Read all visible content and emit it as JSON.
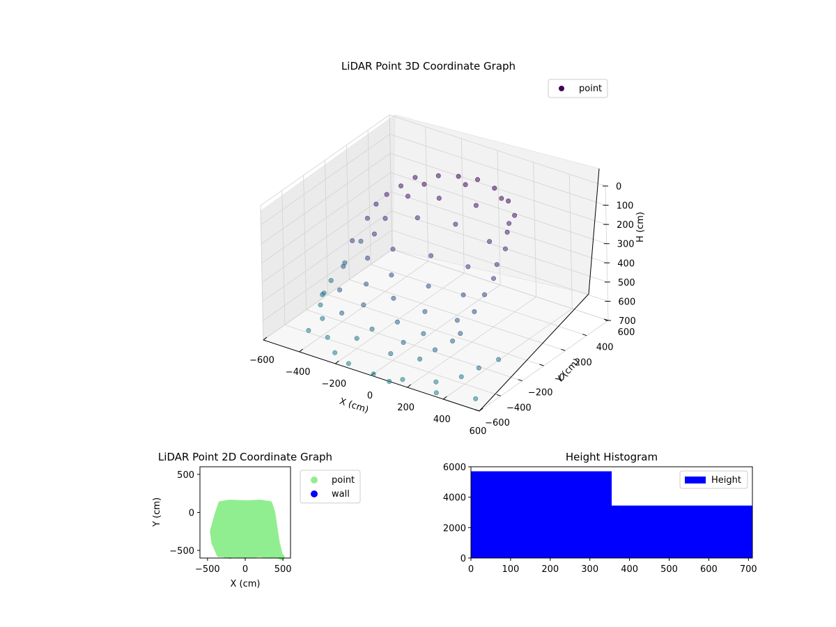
{
  "chart_data": [
    {
      "type": "scatter",
      "dimension": "3d",
      "title": "LiDAR Point 3D Coordinate Graph",
      "xlabel": "X (cm)",
      "ylabel": "Y (cm)",
      "zlabel": "H (cm)",
      "xlim": [
        -600,
        600
      ],
      "ylim": [
        -600,
        600
      ],
      "zlim": [
        0,
        700
      ],
      "z_inverted": true,
      "x_ticks": [
        -600,
        -400,
        -200,
        0,
        200,
        400,
        600
      ],
      "y_ticks": [
        -600,
        -400,
        -200,
        0,
        200,
        400,
        600
      ],
      "z_ticks": [
        0,
        100,
        200,
        300,
        400,
        500,
        600,
        700
      ],
      "x_tick_labels": [
        "−600",
        "−400",
        "−200",
        "0",
        "200",
        "400",
        "600"
      ],
      "y_tick_labels": [
        "−600",
        "−400",
        "−200",
        "0",
        "200",
        "400",
        "600"
      ],
      "z_tick_labels": [
        "0",
        "100",
        "200",
        "300",
        "400",
        "500",
        "600",
        "700"
      ],
      "grid": true,
      "legend": {
        "position": "top-right",
        "entries": [
          {
            "label": "point",
            "color": "#440154"
          }
        ]
      },
      "colormap": "viridis",
      "series": [
        {
          "name": "point",
          "points": [
            [
              -250,
              250,
              80
            ],
            [
              -150,
              300,
              60
            ],
            [
              -50,
              320,
              40
            ],
            [
              50,
              330,
              30
            ],
            [
              150,
              320,
              40
            ],
            [
              250,
              280,
              60
            ],
            [
              320,
              220,
              90
            ],
            [
              -300,
              200,
              120
            ],
            [
              -200,
              250,
              100
            ],
            [
              0,
              300,
              60
            ],
            [
              200,
              300,
              70
            ],
            [
              320,
              150,
              150
            ],
            [
              350,
              80,
              200
            ],
            [
              -350,
              150,
              160
            ],
            [
              -250,
              180,
              150
            ],
            [
              -100,
              220,
              130
            ],
            [
              100,
              230,
              110
            ],
            [
              300,
              200,
              130
            ],
            [
              350,
              0,
              250
            ],
            [
              -380,
              100,
              200
            ],
            [
              -300,
              50,
              230
            ],
            [
              -150,
              100,
              200
            ],
            [
              50,
              120,
              180
            ],
            [
              250,
              100,
              200
            ],
            [
              360,
              -50,
              300
            ],
            [
              -400,
              50,
              260
            ],
            [
              -320,
              -20,
              290
            ],
            [
              -200,
              -50,
              320
            ],
            [
              0,
              -30,
              300
            ],
            [
              200,
              -20,
              300
            ],
            [
              350,
              -120,
              360
            ],
            [
              -420,
              -60,
              340
            ],
            [
              -300,
              -120,
              370
            ],
            [
              -150,
              -150,
              400
            ],
            [
              50,
              -140,
              400
            ],
            [
              250,
              -150,
              380
            ],
            [
              340,
              -200,
              420
            ],
            [
              -400,
              -180,
              420
            ],
            [
              -250,
              -220,
              450
            ],
            [
              -80,
              -250,
              460
            ],
            [
              100,
              -260,
              470
            ],
            [
              280,
              -260,
              460
            ],
            [
              320,
              -300,
              500
            ],
            [
              -350,
              -300,
              480
            ],
            [
              -200,
              -330,
              500
            ],
            [
              0,
              -350,
              520
            ],
            [
              150,
              -360,
              530
            ],
            [
              300,
              -340,
              530
            ],
            [
              -280,
              -400,
              540
            ],
            [
              -100,
              -420,
              560
            ],
            [
              80,
              -430,
              570
            ],
            [
              250,
              -420,
              560
            ],
            [
              -150,
              -480,
              600
            ],
            [
              50,
              -500,
              610
            ],
            [
              200,
              -480,
              600
            ],
            [
              -500,
              150,
              450
            ],
            [
              -550,
              80,
              550
            ],
            [
              -580,
              0,
              620
            ],
            [
              -560,
              -100,
              640
            ],
            [
              -520,
              -200,
              650
            ],
            [
              -450,
              -300,
              660
            ],
            [
              -350,
              -420,
              680
            ],
            [
              -250,
              -520,
              690
            ],
            [
              -150,
              -560,
              700
            ],
            [
              0,
              -580,
              700
            ],
            [
              150,
              -560,
              690
            ],
            [
              300,
              -500,
              680
            ],
            [
              400,
              -430,
              650
            ],
            [
              450,
              -350,
              620
            ],
            [
              500,
              -250,
              600
            ],
            [
              -600,
              -50,
              680
            ],
            [
              -480,
              -380,
              700
            ],
            [
              100,
              -600,
              700
            ],
            [
              350,
              -580,
              690
            ],
            [
              520,
              -500,
              700
            ]
          ]
        }
      ]
    },
    {
      "type": "scatter",
      "dimension": "2d",
      "title": "LiDAR Point 2D Coordinate Graph",
      "xlabel": "X (cm)",
      "ylabel": "Y (cm)",
      "xlim": [
        -600,
        600
      ],
      "ylim": [
        -600,
        600
      ],
      "x_ticks": [
        -500,
        0,
        500
      ],
      "y_ticks": [
        -500,
        0,
        500
      ],
      "x_tick_labels": [
        "−500",
        "0",
        "500"
      ],
      "y_tick_labels": [
        "−500",
        "0",
        "500"
      ],
      "legend": {
        "position": "outside-right",
        "entries": [
          {
            "label": "point",
            "color": "#90ee90"
          },
          {
            "label": "wall",
            "color": "#0000ff"
          }
        ]
      },
      "series": [
        {
          "name": "point",
          "color": "#90ee90",
          "region": {
            "outline": [
              [
                -330,
                120
              ],
              [
                -200,
                140
              ],
              [
                0,
                130
              ],
              [
                200,
                140
              ],
              [
                330,
                120
              ],
              [
                370,
                0
              ],
              [
                400,
                -200
              ],
              [
                430,
                -400
              ],
              [
                470,
                -560
              ],
              [
                350,
                -580
              ],
              [
                200,
                -560
              ],
              [
                0,
                -580
              ],
              [
                -200,
                -560
              ],
              [
                -350,
                -560
              ],
              [
                -420,
                -400
              ],
              [
                -440,
                -250
              ],
              [
                -400,
                -100
              ],
              [
                -370,
                0
              ]
            ]
          },
          "points": [
            [
              -260,
              -560
            ],
            [
              -200,
              -570
            ],
            [
              0,
              -550
            ],
            [
              250,
              -560
            ],
            [
              450,
              -570
            ],
            [
              480,
              -585
            ]
          ]
        },
        {
          "name": "wall",
          "color": "#0000ff",
          "points": []
        }
      ]
    },
    {
      "type": "bar",
      "subtype": "histogram",
      "title": "Height Histogram",
      "xlim": [
        0,
        710
      ],
      "ylim": [
        0,
        6000
      ],
      "x_ticks": [
        0,
        100,
        200,
        300,
        400,
        500,
        600,
        700
      ],
      "y_ticks": [
        0,
        2000,
        4000,
        6000
      ],
      "legend": {
        "position": "top-right",
        "entries": [
          {
            "label": "Height",
            "color": "#0000ff"
          }
        ]
      },
      "series": [
        {
          "name": "Height",
          "color": "#0000ff",
          "bins": [
            {
              "x0": 0,
              "x1": 355,
              "value": 5700
            },
            {
              "x0": 355,
              "x1": 710,
              "value": 3450
            }
          ]
        }
      ]
    }
  ]
}
